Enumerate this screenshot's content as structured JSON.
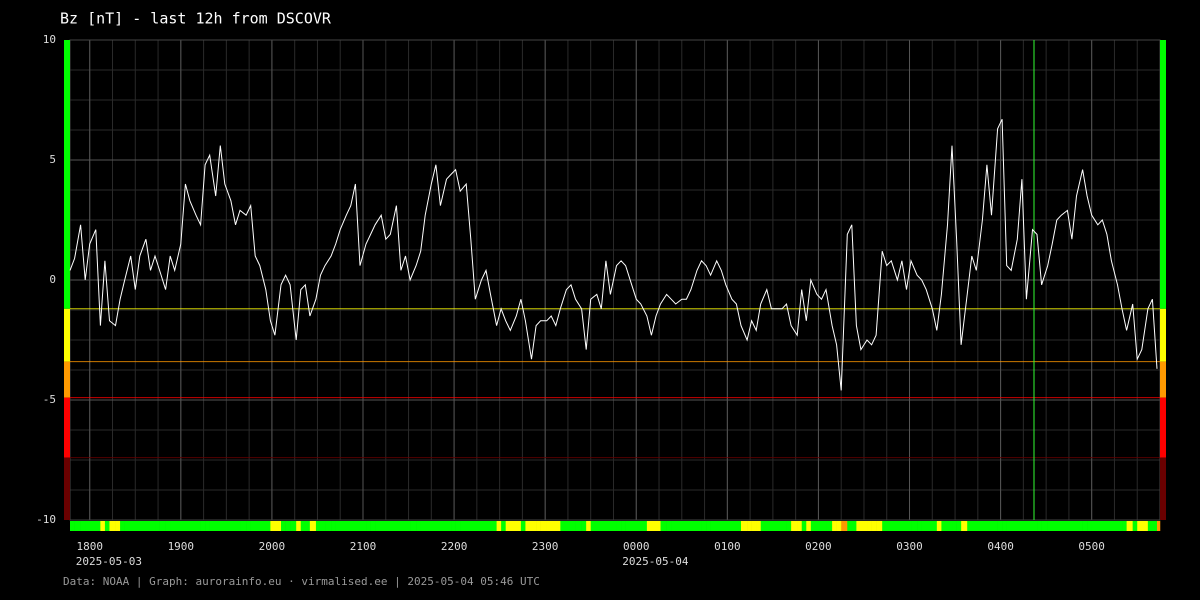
{
  "chart_data": {
    "type": "line",
    "title": "Bz [nT] - last 12h from DSCOVR",
    "footer": "Data: NOAA | Graph: aurorainfo.eu · virmalised.ee | 2025-05-04 05:46 UTC",
    "color": "#ffffff",
    "grid": true,
    "xlim": [
      1067,
      1785
    ],
    "ylim": [
      -10,
      10
    ],
    "yticks": [
      -10,
      -5,
      0,
      5,
      10
    ],
    "xticks": [
      {
        "value": 1080,
        "label": "1800"
      },
      {
        "value": 1140,
        "label": "1900"
      },
      {
        "value": 1200,
        "label": "2000"
      },
      {
        "value": 1260,
        "label": "2100"
      },
      {
        "value": 1320,
        "label": "2200"
      },
      {
        "value": 1380,
        "label": "2300"
      },
      {
        "value": 1440,
        "label": "0000"
      },
      {
        "value": 1500,
        "label": "0100"
      },
      {
        "value": 1560,
        "label": "0200"
      },
      {
        "value": 1620,
        "label": "0300"
      },
      {
        "value": 1680,
        "label": "0400"
      },
      {
        "value": 1740,
        "label": "0500"
      }
    ],
    "date_labels": [
      {
        "value": 1080,
        "label": "2025-05-03"
      },
      {
        "value": 1440,
        "label": "2025-05-04"
      }
    ],
    "marker_x": 1702,
    "marker_color": "#33ff33",
    "ok_color": "#00ff00",
    "thresholds": [
      {
        "value": -1.2,
        "color": "#ffff00"
      },
      {
        "value": -3.4,
        "color": "#ff9900"
      },
      {
        "value": -4.9,
        "color": "#ff0000"
      },
      {
        "value": -7.4,
        "color": "#6a0000"
      }
    ],
    "x": [
      1067,
      1070,
      1074,
      1077,
      1080,
      1084,
      1087,
      1090,
      1093,
      1097,
      1100,
      1103,
      1107,
      1110,
      1113,
      1117,
      1120,
      1123,
      1126,
      1130,
      1133,
      1136,
      1140,
      1143,
      1146,
      1150,
      1153,
      1156,
      1159,
      1163,
      1166,
      1169,
      1173,
      1176,
      1179,
      1183,
      1186,
      1189,
      1192,
      1196,
      1199,
      1202,
      1206,
      1209,
      1212,
      1216,
      1219,
      1222,
      1225,
      1229,
      1232,
      1235,
      1239,
      1242,
      1245,
      1249,
      1252,
      1255,
      1258,
      1262,
      1265,
      1268,
      1272,
      1275,
      1278,
      1282,
      1285,
      1288,
      1291,
      1295,
      1298,
      1301,
      1305,
      1308,
      1311,
      1315,
      1318,
      1321,
      1324,
      1328,
      1331,
      1334,
      1338,
      1341,
      1344,
      1348,
      1351,
      1354,
      1357,
      1361,
      1364,
      1367,
      1371,
      1374,
      1377,
      1381,
      1384,
      1387,
      1390,
      1394,
      1397,
      1400,
      1404,
      1407,
      1410,
      1414,
      1417,
      1420,
      1423,
      1427,
      1430,
      1433,
      1437,
      1440,
      1443,
      1447,
      1450,
      1453,
      1456,
      1460,
      1463,
      1466,
      1470,
      1473,
      1476,
      1480,
      1483,
      1486,
      1489,
      1493,
      1496,
      1499,
      1503,
      1506,
      1509,
      1513,
      1516,
      1519,
      1522,
      1526,
      1529,
      1532,
      1536,
      1539,
      1542,
      1546,
      1549,
      1552,
      1555,
      1559,
      1562,
      1565,
      1569,
      1572,
      1575,
      1579,
      1582,
      1585,
      1588,
      1592,
      1595,
      1598,
      1602,
      1605,
      1608,
      1612,
      1615,
      1618,
      1621,
      1625,
      1628,
      1631,
      1635,
      1638,
      1641,
      1645,
      1648,
      1651,
      1654,
      1658,
      1661,
      1664,
      1668,
      1671,
      1674,
      1678,
      1681,
      1684,
      1687,
      1691,
      1694,
      1697,
      1701,
      1704,
      1707,
      1711,
      1714,
      1717,
      1720,
      1724,
      1727,
      1730,
      1734,
      1737,
      1740,
      1744,
      1747,
      1750,
      1753,
      1757,
      1760,
      1763,
      1767,
      1770,
      1773,
      1777,
      1780,
      1783
    ],
    "values": [
      0.4,
      0.9,
      2.3,
      0,
      1.5,
      2.1,
      -1.9,
      0.8,
      -1.7,
      -1.9,
      -0.8,
      0,
      1,
      -0.4,
      1,
      1.7,
      0.4,
      1,
      0.4,
      -0.4,
      1,
      0.4,
      1.5,
      4,
      3.3,
      2.7,
      2.3,
      4.8,
      5.2,
      3.5,
      5.6,
      4,
      3.3,
      2.3,
      2.9,
      2.7,
      3.1,
      1,
      0.6,
      -0.4,
      -1.7,
      -2.3,
      -0.2,
      0.2,
      -0.2,
      -2.5,
      -0.4,
      -0.2,
      -1.5,
      -0.8,
      0.2,
      0.6,
      1,
      1.5,
      2.1,
      2.7,
      3.1,
      4,
      0.6,
      1.5,
      1.9,
      2.3,
      2.7,
      1.7,
      1.9,
      3.1,
      0.4,
      1,
      0,
      0.6,
      1.2,
      2.7,
      4,
      4.8,
      3.1,
      4.2,
      4.4,
      4.6,
      3.7,
      4,
      1.7,
      -0.8,
      0,
      0.4,
      -0.6,
      -1.9,
      -1.2,
      -1.7,
      -2.1,
      -1.5,
      -0.8,
      -1.7,
      -3.3,
      -1.9,
      -1.7,
      -1.7,
      -1.5,
      -1.9,
      -1.2,
      -0.4,
      -0.2,
      -0.8,
      -1.2,
      -2.9,
      -0.8,
      -0.6,
      -1.2,
      0.8,
      -0.6,
      0.6,
      0.8,
      0.6,
      -0.2,
      -0.8,
      -1,
      -1.5,
      -2.3,
      -1.5,
      -1,
      -0.6,
      -0.8,
      -1,
      -0.8,
      -0.8,
      -0.4,
      0.4,
      0.8,
      0.6,
      0.2,
      0.8,
      0.4,
      -0.2,
      -0.8,
      -1,
      -1.9,
      -2.5,
      -1.7,
      -2.1,
      -1,
      -0.4,
      -1.2,
      -1.2,
      -1.2,
      -1,
      -1.9,
      -2.3,
      -0.4,
      -1.7,
      0,
      -0.6,
      -0.8,
      -0.4,
      -1.9,
      -2.7,
      -4.6,
      1.9,
      2.3,
      -1.9,
      -2.9,
      -2.5,
      -2.7,
      -2.3,
      1.2,
      0.6,
      0.8,
      0,
      0.8,
      -0.4,
      0.8,
      0.2,
      0,
      -0.4,
      -1.2,
      -2.1,
      -0.6,
      2.3,
      5.6,
      1.7,
      -2.7,
      -0.6,
      1,
      0.4,
      2.5,
      4.8,
      2.7,
      6.3,
      6.7,
      0.6,
      0.4,
      1.7,
      4.2,
      -0.8,
      2.1,
      1.9,
      -0.2,
      0.6,
      1.5,
      2.5,
      2.7,
      2.9,
      1.7,
      3.5,
      4.6,
      3.5,
      2.7,
      2.3,
      2.5,
      1.9,
      0.8,
      -0.2,
      -1.2,
      -2.1,
      -1,
      -3.3,
      -2.9,
      -1.2,
      -0.8,
      -3.7
    ]
  }
}
